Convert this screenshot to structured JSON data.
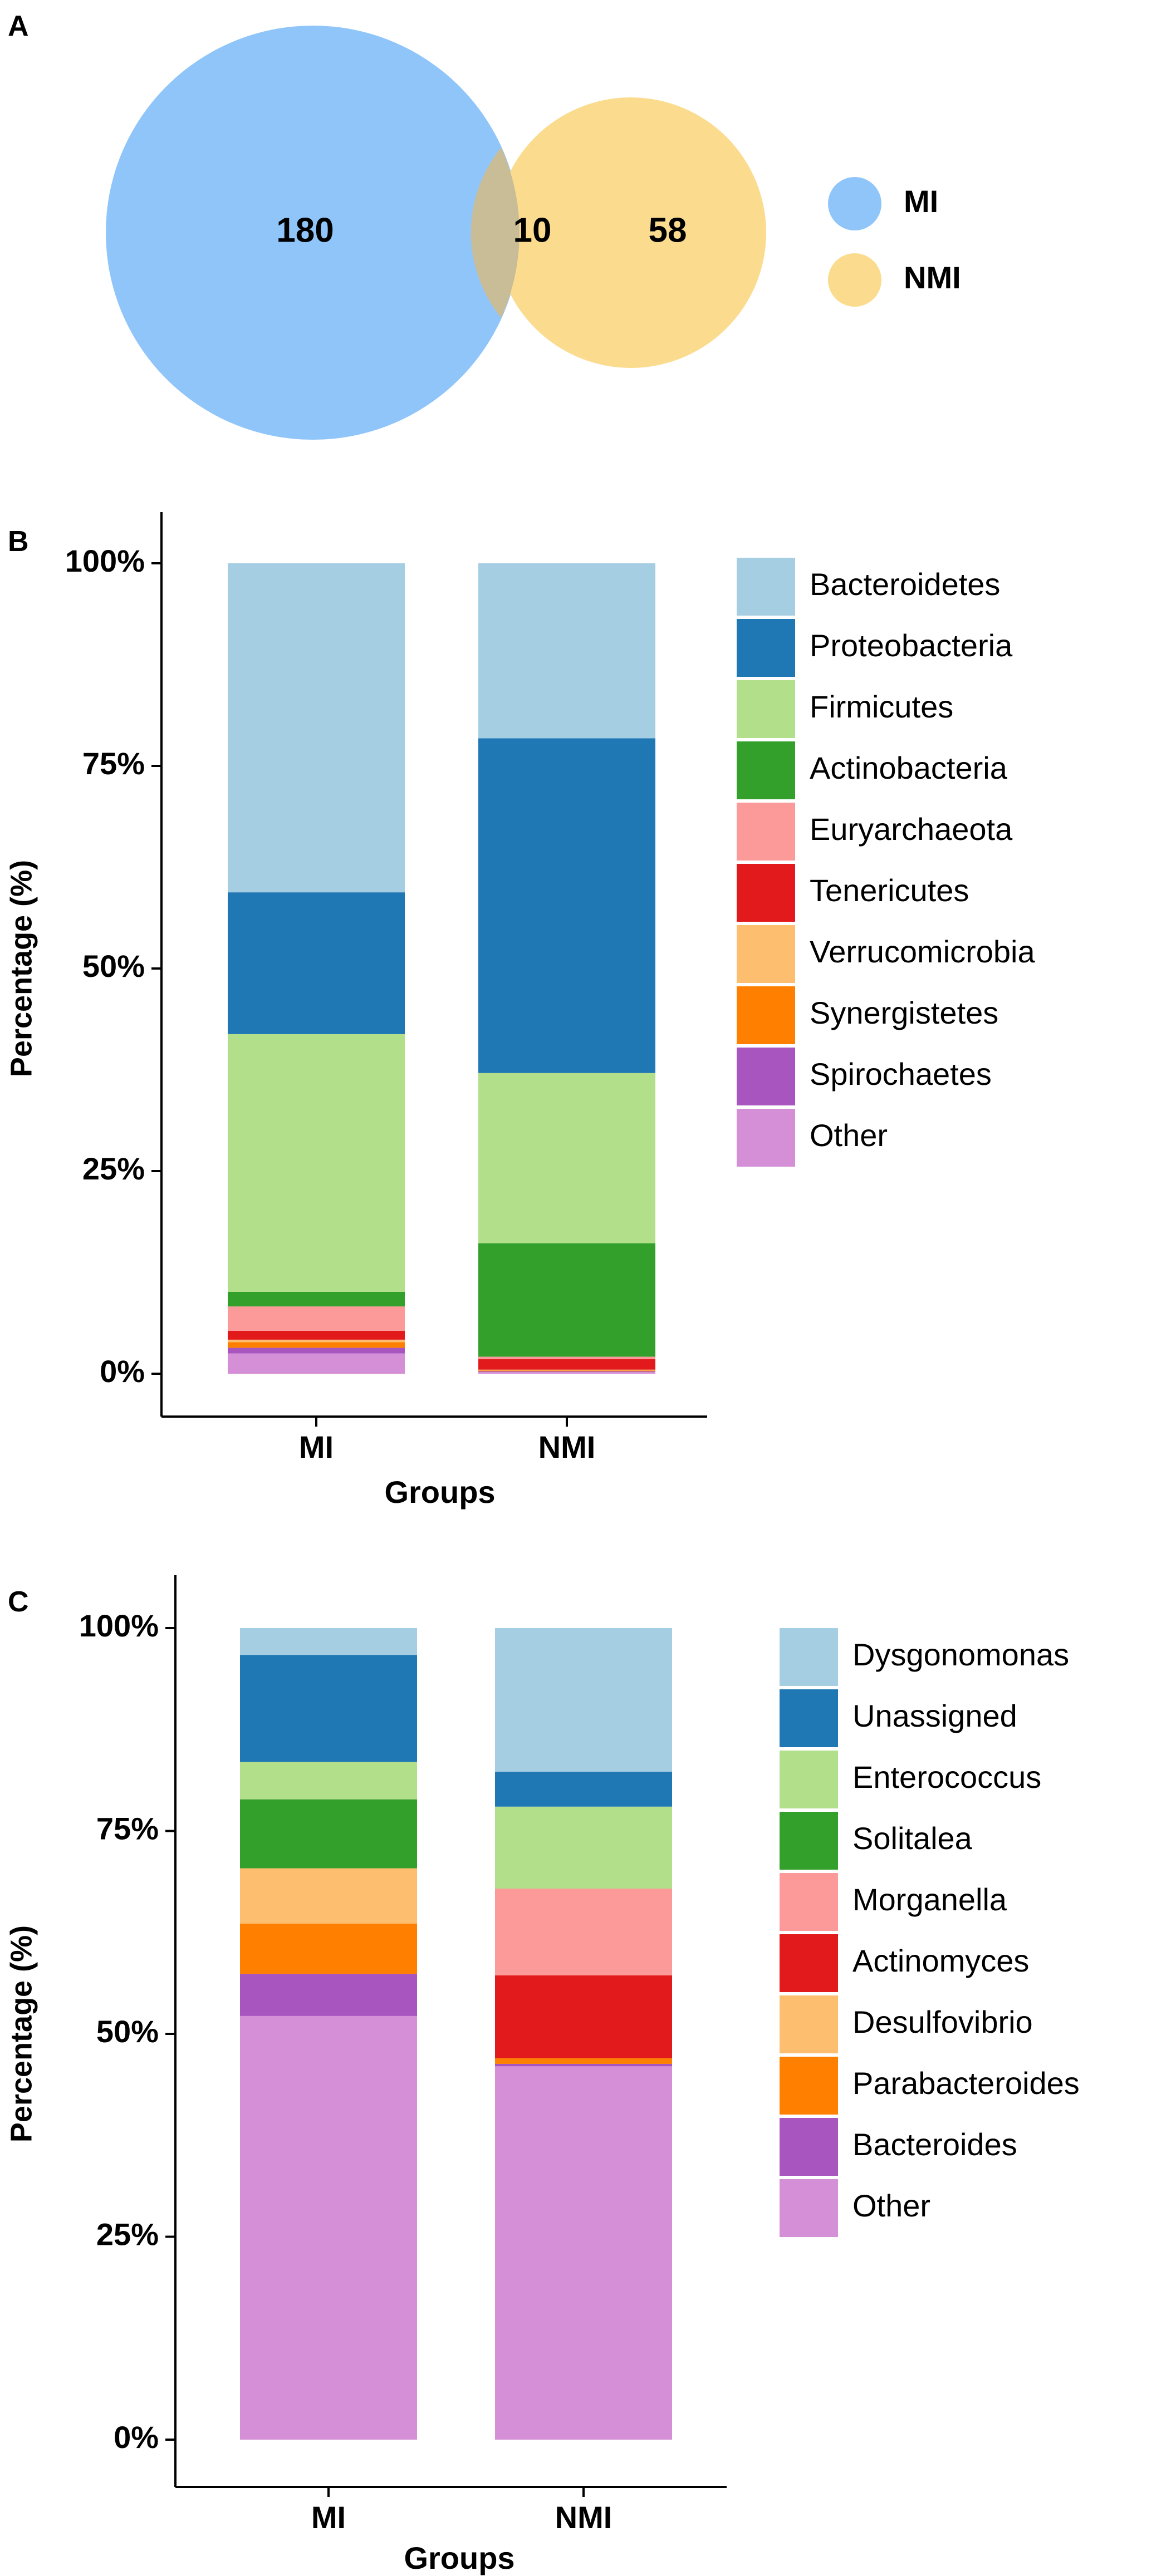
{
  "figure": {
    "panels": [
      {
        "label": "A",
        "type": "venn"
      },
      {
        "label": "B",
        "type": "stacked-bar"
      },
      {
        "label": "C",
        "type": "stacked-bar"
      }
    ]
  },
  "chart_data": [
    {
      "type": "venn",
      "panel": "A",
      "sets": [
        {
          "name": "MI",
          "only_count": 180,
          "color": "#90c5fa"
        },
        {
          "name": "NMI",
          "only_count": 58,
          "color": "#fbdc8f"
        }
      ],
      "intersection": 10,
      "overlap_color": "#c8bd96",
      "legend": [
        "MI",
        "NMI"
      ]
    },
    {
      "type": "bar",
      "stacked": true,
      "panel": "B",
      "categories": [
        "MI",
        "NMI"
      ],
      "xlabel": "Groups",
      "ylabel": "Percentage (%)",
      "ylim": [
        0,
        100
      ],
      "yticks": [
        0,
        25,
        50,
        75,
        100
      ],
      "ytick_labels": [
        "0%",
        "25%",
        "50%",
        "75%",
        "100%"
      ],
      "series": [
        {
          "name": "Other",
          "color": "#d48fd6",
          "values": [
            2.5,
            0.2
          ]
        },
        {
          "name": "Spirochaetes",
          "color": "#a855c0",
          "values": [
            0.7,
            0.1
          ]
        },
        {
          "name": "Synergistetes",
          "color": "#ff8000",
          "values": [
            0.7,
            0.1
          ]
        },
        {
          "name": "Verrucomicrobia",
          "color": "#fdbf6f",
          "values": [
            0.3,
            0.1
          ]
        },
        {
          "name": "Tenericutes",
          "color": "#e31a1c",
          "values": [
            1.1,
            1.3
          ]
        },
        {
          "name": "Euryarchaeota",
          "color": "#fb9a99",
          "values": [
            3.0,
            0.3
          ]
        },
        {
          "name": "Actinobacteria",
          "color": "#33a02c",
          "values": [
            1.8,
            14.0
          ]
        },
        {
          "name": "Firmicutes",
          "color": "#b2df8a",
          "values": [
            31.8,
            21.0
          ]
        },
        {
          "name": "Proteobacteria",
          "color": "#1f78b4",
          "values": [
            17.5,
            41.3
          ]
        },
        {
          "name": "Bacteroidetes",
          "color": "#a6cee3",
          "values": [
            40.6,
            21.6
          ]
        }
      ],
      "legend": [
        "Bacteroidetes",
        "Proteobacteria",
        "Firmicutes",
        "Actinobacteria",
        "Euryarchaeota",
        "Tenericutes",
        "Verrucomicrobia",
        "Synergistetes",
        "Spirochaetes",
        "Other"
      ]
    },
    {
      "type": "bar",
      "stacked": true,
      "panel": "C",
      "categories": [
        "MI",
        "NMI"
      ],
      "xlabel": "Groups",
      "ylabel": "Percentage (%)",
      "ylim": [
        0,
        100
      ],
      "yticks": [
        0,
        25,
        50,
        75,
        100
      ],
      "ytick_labels": [
        "0%",
        "25%",
        "50%",
        "75%",
        "100%"
      ],
      "series": [
        {
          "name": "Other",
          "color": "#d48fd6",
          "values": [
            52.2,
            46.0
          ]
        },
        {
          "name": "Bacteroides",
          "color": "#a855c0",
          "values": [
            5.2,
            0.3
          ]
        },
        {
          "name": "Parabacteroides",
          "color": "#ff8000",
          "values": [
            6.2,
            0.7
          ]
        },
        {
          "name": "Desulfovibrio",
          "color": "#fdbf6f",
          "values": [
            6.8,
            0.0
          ]
        },
        {
          "name": "Actinomyces",
          "color": "#e31a1c",
          "values": [
            0.0,
            10.2
          ]
        },
        {
          "name": "Morganella",
          "color": "#fb9a99",
          "values": [
            0.0,
            10.7
          ]
        },
        {
          "name": "Solitalea",
          "color": "#33a02c",
          "values": [
            8.5,
            0.0
          ]
        },
        {
          "name": "Enterococcus",
          "color": "#b2df8a",
          "values": [
            4.6,
            10.1
          ]
        },
        {
          "name": "Unassigned",
          "color": "#1f78b4",
          "values": [
            13.2,
            4.3
          ]
        },
        {
          "name": "Dysgonomonas",
          "color": "#a6cee3",
          "values": [
            3.3,
            17.7
          ]
        }
      ],
      "legend": [
        "Dysgonomonas",
        "Unassigned",
        "Enterococcus",
        "Solitalea",
        "Morganella",
        "Actinomyces",
        "Desulfovibrio",
        "Parabacteroides",
        "Bacteroides",
        "Other"
      ]
    }
  ]
}
